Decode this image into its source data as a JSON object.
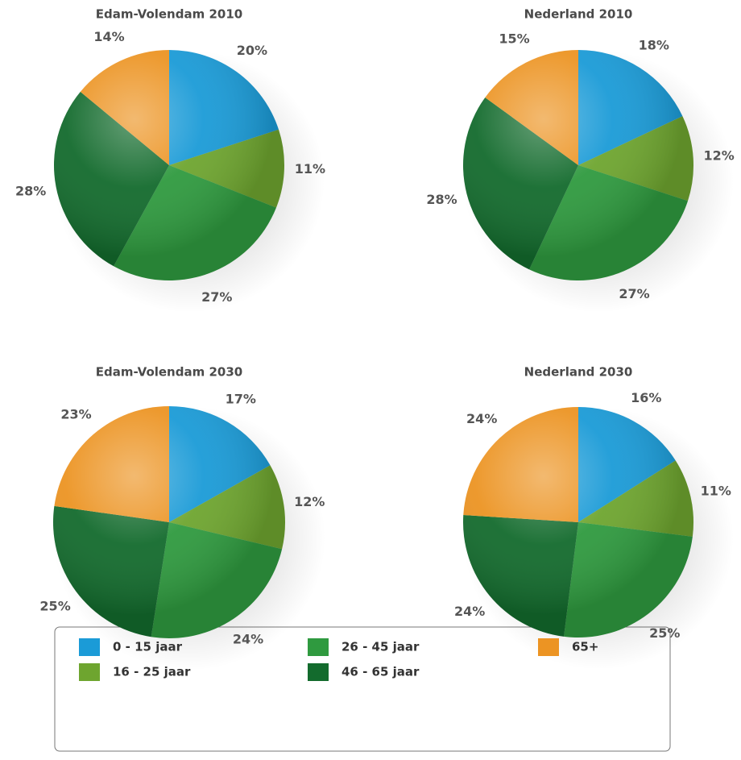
{
  "chart_data": [
    {
      "type": "pie",
      "title": "Edam-Volendam 2010",
      "categories": [
        "0 - 15 jaar",
        "16 - 25 jaar",
        "26 - 45 jaar",
        "46 - 65 jaar",
        "65+"
      ],
      "values": [
        20,
        11,
        27,
        28,
        14
      ],
      "value_labels": [
        "20%",
        "11%",
        "27%",
        "28%",
        "14%"
      ],
      "colors": [
        "#1b9bd7",
        "#6ea52f",
        "#2f9a3f",
        "#136b2d",
        "#ec9423"
      ]
    },
    {
      "type": "pie",
      "title": "Nederland 2010",
      "categories": [
        "0 - 15 jaar",
        "16 - 25 jaar",
        "26 - 45 jaar",
        "46 - 65 jaar",
        "65+"
      ],
      "values": [
        18,
        12,
        27,
        28,
        15
      ],
      "value_labels": [
        "18%",
        "12%",
        "27%",
        "28%",
        "15%"
      ],
      "colors": [
        "#1b9bd7",
        "#6ea52f",
        "#2f9a3f",
        "#136b2d",
        "#ec9423"
      ]
    },
    {
      "type": "pie",
      "title": "Edam-Volendam 2030",
      "categories": [
        "0 - 15 jaar",
        "16 - 25 jaar",
        "26 - 45 jaar",
        "46 - 65 jaar",
        "65+"
      ],
      "values": [
        17,
        12,
        24,
        25,
        23
      ],
      "value_labels": [
        "17%",
        "12%",
        "24%",
        "25%",
        "23%"
      ],
      "colors": [
        "#1b9bd7",
        "#6ea52f",
        "#2f9a3f",
        "#136b2d",
        "#ec9423"
      ]
    },
    {
      "type": "pie",
      "title": "Nederland 2030",
      "categories": [
        "0 - 15 jaar",
        "16 - 25 jaar",
        "26 - 45 jaar",
        "46 - 65 jaar",
        "65+"
      ],
      "values": [
        16,
        11,
        25,
        24,
        24
      ],
      "value_labels": [
        "16%",
        "11%",
        "25%",
        "24%",
        "24%"
      ],
      "colors": [
        "#1b9bd7",
        "#6ea52f",
        "#2f9a3f",
        "#136b2d",
        "#ec9423"
      ]
    }
  ]
}
